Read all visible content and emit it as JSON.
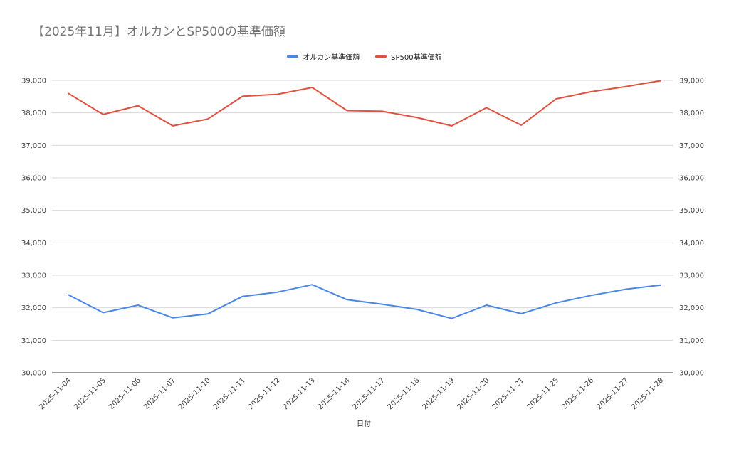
{
  "chart_data": {
    "type": "line",
    "title": "【2025年11月】オルカンとSP500の基準価額",
    "xlabel": "日付",
    "ylabel": "",
    "ylim": [
      30000,
      39000
    ],
    "y_ticks": [
      "30,000",
      "31,000",
      "32,000",
      "33,000",
      "34,000",
      "35,000",
      "36,000",
      "37,000",
      "38,000",
      "39,000"
    ],
    "y_ticks_right": [
      "30,000",
      "31,000",
      "32,000",
      "33,000",
      "34,000",
      "35,000",
      "36,000",
      "37,000",
      "38,000",
      "39,000"
    ],
    "grid": true,
    "legend_position": "top",
    "categories": [
      "2025-11-04",
      "2025-11-05",
      "2025-11-06",
      "2025-11-07",
      "2025-11-10",
      "2025-11-11",
      "2025-11-12",
      "2025-11-13",
      "2025-11-14",
      "2025-11-17",
      "2025-11-18",
      "2025-11-19",
      "2025-11-20",
      "2025-11-21",
      "2025-11-25",
      "2025-11-26",
      "2025-11-27",
      "2025-11-28"
    ],
    "series": [
      {
        "name": "オルカン基準価額",
        "color": "#4a86e8",
        "values": [
          32400,
          31850,
          32080,
          31690,
          31810,
          32350,
          32480,
          32710,
          32250,
          32110,
          31950,
          31670,
          32080,
          31820,
          32150,
          32380,
          32570,
          32700
        ]
      },
      {
        "name": "SP500基準価額",
        "color": "#e0513f",
        "values": [
          38600,
          37950,
          38220,
          37600,
          37810,
          38510,
          38570,
          38780,
          38070,
          38050,
          37860,
          37600,
          38160,
          37620,
          38430,
          38650,
          38810,
          38990
        ]
      }
    ]
  }
}
